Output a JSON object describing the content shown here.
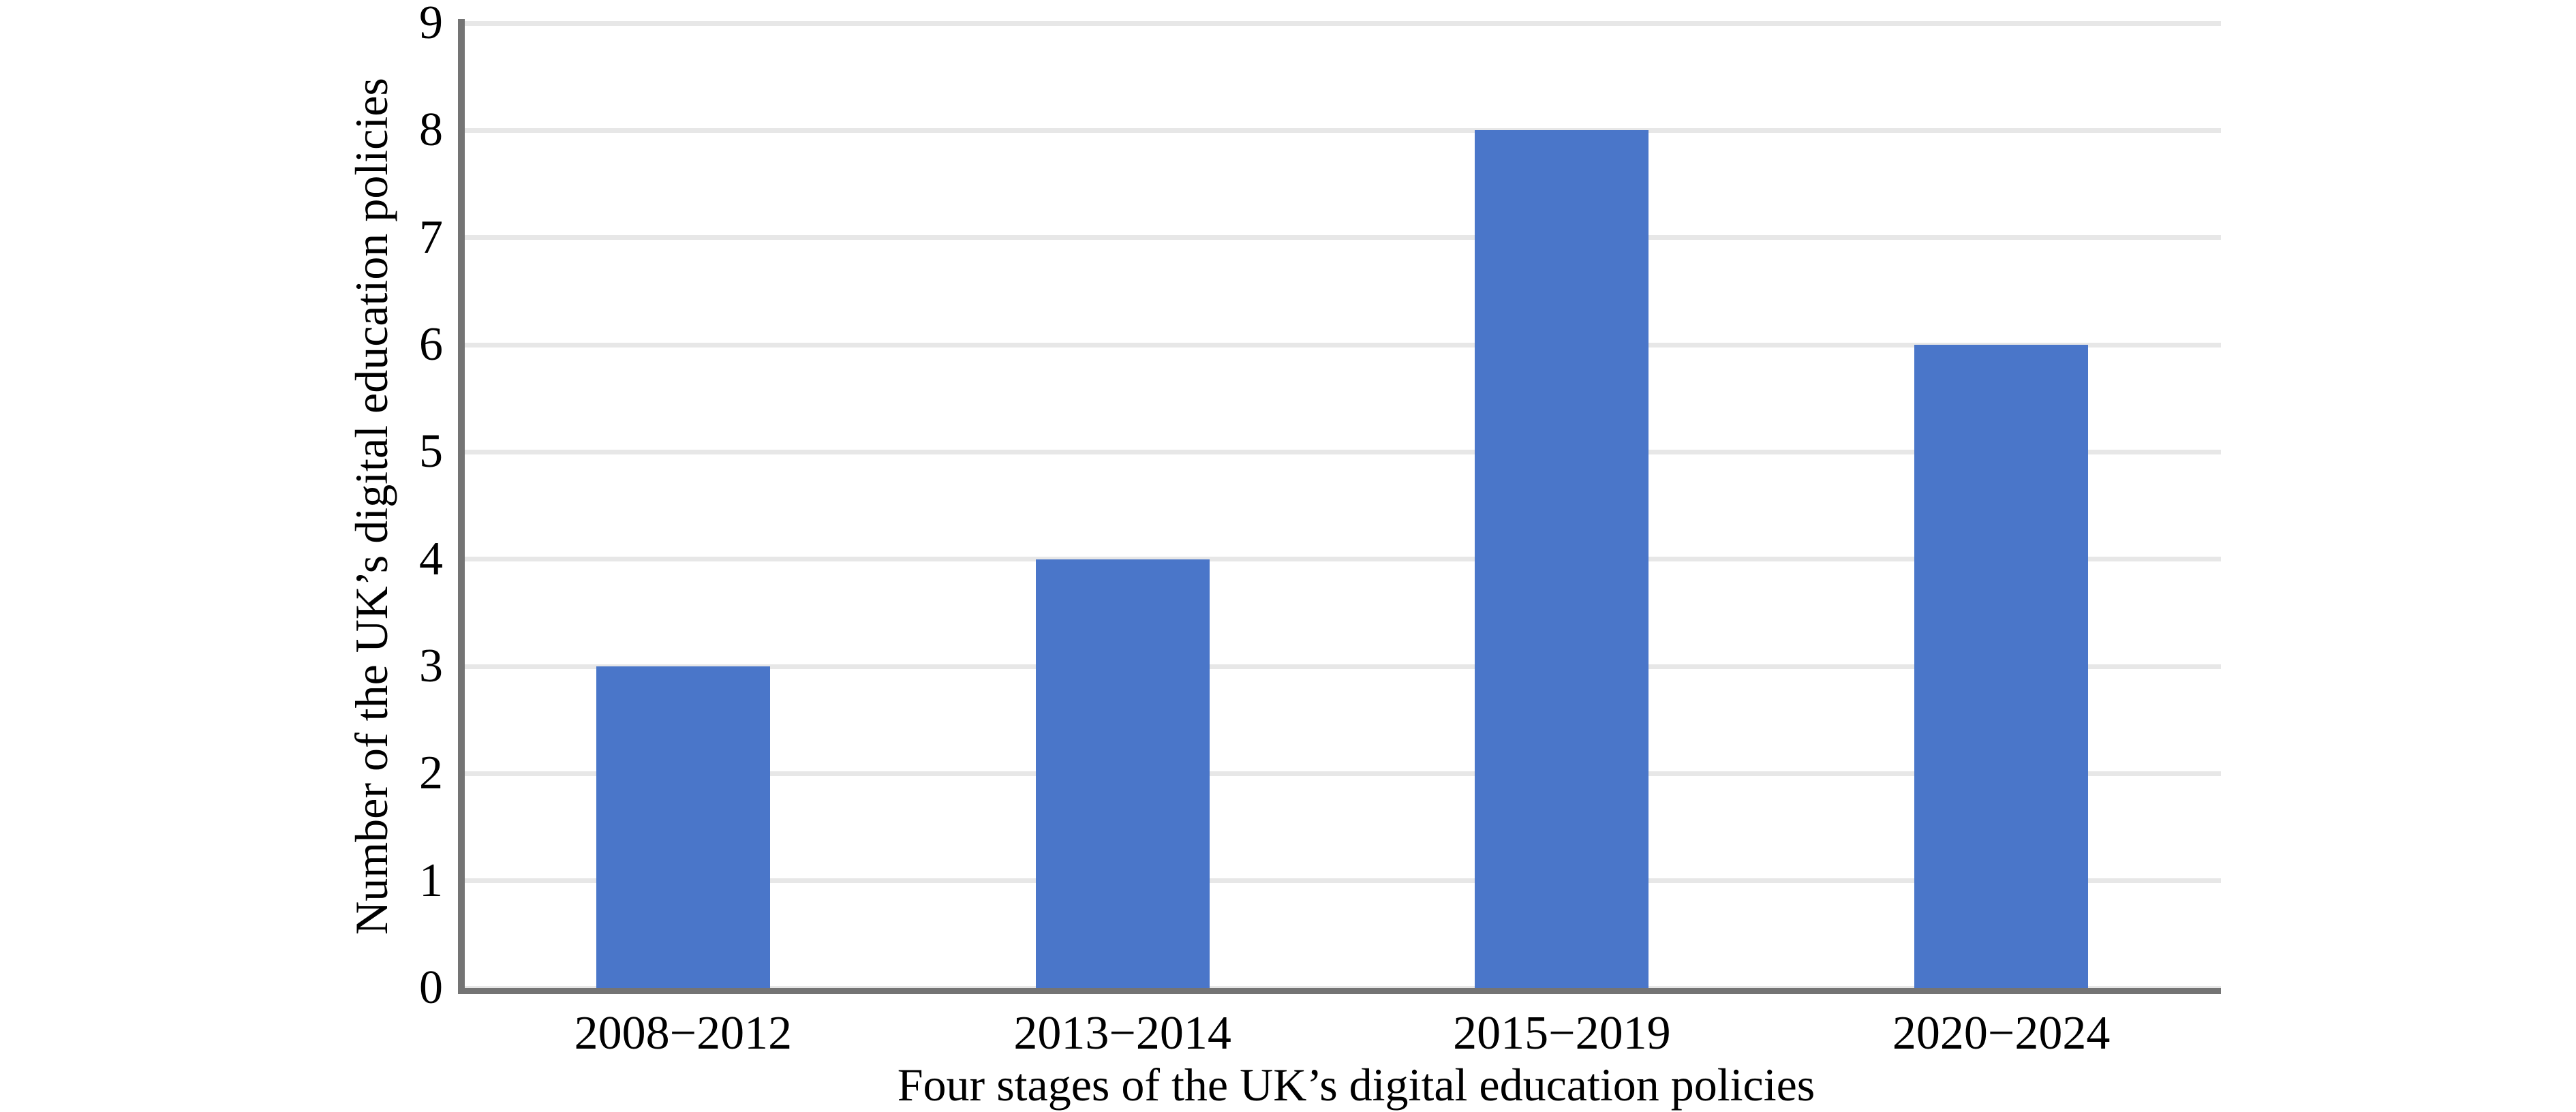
{
  "colors": {
    "bar": "#4A76C9",
    "gridline": "#E7E7E7",
    "axis": "#747474",
    "text": "#000000",
    "background": "#FFFFFF"
  },
  "chart_data": {
    "type": "bar",
    "title": "",
    "categories": [
      "2008−2012",
      "2013−2014",
      "2015−2019",
      "2020−2024"
    ],
    "values": [
      3,
      4,
      8,
      6
    ],
    "xlabel": "Four stages of the UK’s digital education policies",
    "ylabel": "Number of the UK’s digital education policies",
    "ylim": [
      0,
      9
    ],
    "yticks": [
      0,
      1,
      2,
      3,
      4,
      5,
      6,
      7,
      8,
      9
    ],
    "grid": true,
    "legend": "none",
    "bar_color": "#4A76C9"
  }
}
